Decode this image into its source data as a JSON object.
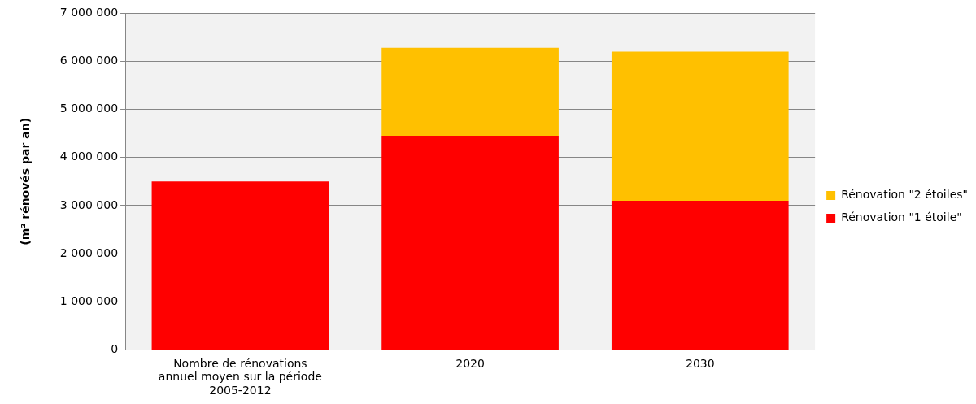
{
  "chart_data": {
    "type": "bar",
    "stacked": true,
    "ylabel": "(m² rénovés par an)",
    "categories": [
      "Nombre de rénovations annuel moyen sur la période 2005-2012",
      "2020",
      "2030"
    ],
    "series": [
      {
        "name": "Rénovation \"1 étoile\"",
        "color": "#ff0000",
        "values": [
          3500000,
          4450000,
          3100000
        ]
      },
      {
        "name": "Rénovation \"2 étoiles\"",
        "color": "#ffc000",
        "values": [
          null,
          1830000,
          3100000
        ]
      }
    ],
    "ylim": [
      0,
      7000000
    ],
    "yticks": [
      {
        "value": 0,
        "label": "0"
      },
      {
        "value": 1000000,
        "label": "1 000 000"
      },
      {
        "value": 2000000,
        "label": "2 000 000"
      },
      {
        "value": 3000000,
        "label": "3 000 000"
      },
      {
        "value": 4000000,
        "label": "4 000 000"
      },
      {
        "value": 5000000,
        "label": "5 000 000"
      },
      {
        "value": 6000000,
        "label": "6 000 000"
      },
      {
        "value": 7000000,
        "label": "7 000 000"
      }
    ],
    "grid": "y",
    "legend": "right"
  }
}
